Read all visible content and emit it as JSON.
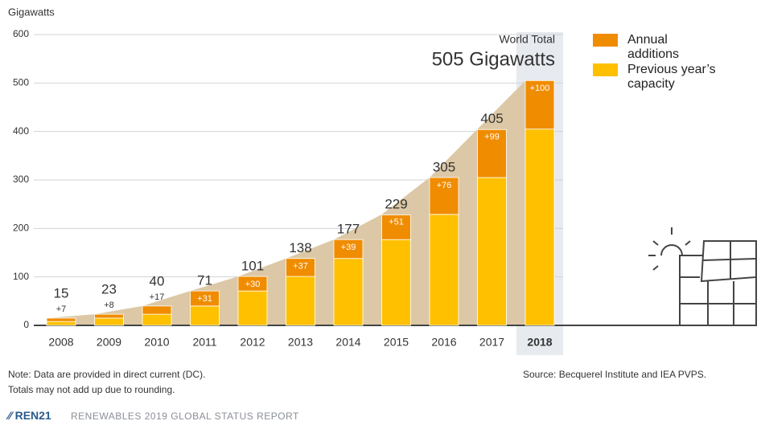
{
  "chart_data": {
    "type": "stacked-bar",
    "y_label": "Gigawatts",
    "categories": [
      "2008",
      "2009",
      "2010",
      "2011",
      "2012",
      "2013",
      "2014",
      "2015",
      "2016",
      "2017",
      "2018"
    ],
    "series": [
      {
        "name": "Previous year’s capacity",
        "color": "#ffc000",
        "values": [
          8,
          15,
          23,
          40,
          71,
          101,
          138,
          177,
          229,
          305,
          405
        ]
      },
      {
        "name": "Annual additions",
        "color": "#f08c00",
        "values": [
          7,
          8,
          17,
          31,
          30,
          37,
          39,
          51,
          76,
          99,
          100
        ],
        "value_labels": [
          "+7",
          "+8",
          "+17",
          "+31",
          "+30",
          "+37",
          "+39",
          "+51",
          "+76",
          "+99",
          "+100"
        ]
      }
    ],
    "totals": [
      15,
      23,
      40,
      71,
      101,
      138,
      177,
      229,
      305,
      405,
      505
    ],
    "annotation_title": "World Total",
    "annotation_value": "505 Gigawatts",
    "ylim": [
      0,
      600
    ],
    "yticks": [
      0,
      100,
      200,
      300,
      400,
      500,
      600
    ],
    "grid": true,
    "area_color": "#dcc8a6",
    "note_lines": [
      "Note: Data are provided in direct current (DC).",
      "Totals may not add up due to rounding."
    ],
    "source": "Source: Becquerel Institute and IEA PVPS.",
    "footer_brand": "REN21",
    "footer_report": "RENEWABLES 2019 GLOBAL STATUS REPORT"
  }
}
